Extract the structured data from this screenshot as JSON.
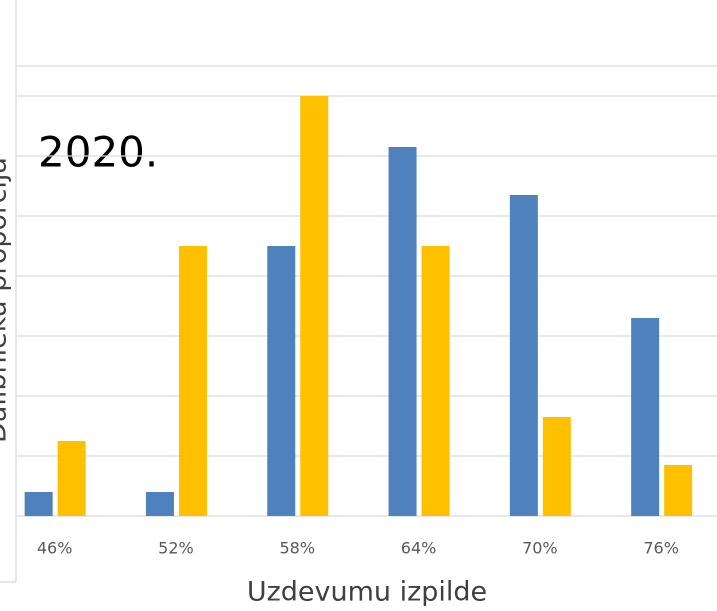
{
  "chart_data": {
    "type": "bar",
    "annotation": "2020.",
    "y_label": "Dalībnieku proporcija",
    "x_label": "Uzdevumu izpilde",
    "categories": [
      "46%",
      "52%",
      "58%",
      "64%",
      "70%",
      "76%"
    ],
    "series": [
      {
        "color": "#4f81bd",
        "values": [
          0.4,
          0.4,
          4.5,
          6.15,
          5.35,
          3.3
        ]
      },
      {
        "color": "#ffc000",
        "values": [
          1.25,
          4.5,
          7.0,
          4.5,
          1.65,
          0.85
        ]
      }
    ],
    "ylim": [
      0,
      7.5
    ],
    "yticks": [
      0,
      1,
      2,
      3,
      4,
      5,
      6,
      7
    ],
    "grid": true
  }
}
